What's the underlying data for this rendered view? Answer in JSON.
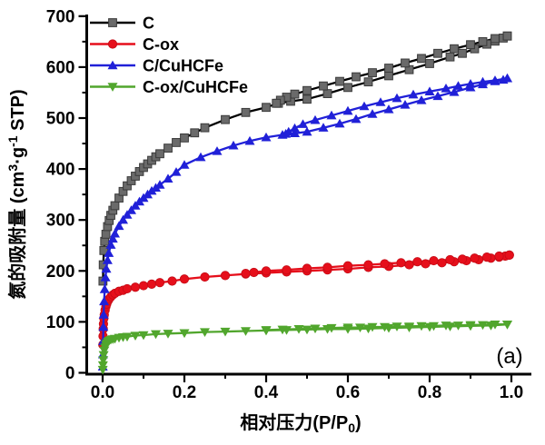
{
  "figure": {
    "panel_label": "(a)"
  },
  "axes": {
    "x_title_parts": [
      {
        "t": "相对压力(P/P",
        "shift": "none"
      },
      {
        "t": "0",
        "shift": "sub"
      },
      {
        "t": ")",
        "shift": "none"
      }
    ],
    "y_title_parts": [
      {
        "t": "氮的吸附量 (cm",
        "shift": "none"
      },
      {
        "t": "3",
        "shift": "sup"
      },
      {
        "t": "·g",
        "shift": "none"
      },
      {
        "t": "-1",
        "shift": "sup"
      },
      {
        "t": " STP)",
        "shift": "none"
      }
    ],
    "x_tick_labels": [
      "0.0",
      "0.2",
      "0.4",
      "0.6",
      "0.8",
      "1.0"
    ],
    "y_tick_labels": [
      "0",
      "100",
      "200",
      "300",
      "400",
      "500",
      "600",
      "700"
    ]
  },
  "chart_data": {
    "type": "line",
    "title": "",
    "xlabel": "相对压力(P/P0)",
    "ylabel": "氮的吸附量 (cm3·g-1 STP)",
    "xlim": [
      0,
      1.05
    ],
    "ylim": [
      0,
      700
    ],
    "x_major_ticks": [
      0,
      0.2,
      0.4,
      0.6,
      0.8,
      1.0
    ],
    "x_minor_ticks": [
      0.1,
      0.3,
      0.5,
      0.7,
      0.9
    ],
    "y_major_ticks": [
      0,
      100,
      200,
      300,
      400,
      500,
      600,
      700
    ],
    "y_minor_ticks": [
      50,
      150,
      250,
      350,
      450,
      550,
      650
    ],
    "grid": false,
    "legend_position": "top-left-inside",
    "series": [
      {
        "name": "C",
        "color": "#000000",
        "marker": "square",
        "marker_fill": "#6a6a6a",
        "marker_edge": "#3a3a3a",
        "adsorption": [
          [
            0.0008,
            180
          ],
          [
            0.0015,
            212
          ],
          [
            0.003,
            240
          ],
          [
            0.005,
            258
          ],
          [
            0.008,
            272
          ],
          [
            0.012,
            287
          ],
          [
            0.016,
            299
          ],
          [
            0.02,
            309
          ],
          [
            0.025,
            319
          ],
          [
            0.03,
            328
          ],
          [
            0.04,
            343
          ],
          [
            0.05,
            356
          ],
          [
            0.06,
            367
          ],
          [
            0.07,
            377
          ],
          [
            0.08,
            386
          ],
          [
            0.09,
            395
          ],
          [
            0.1,
            403
          ],
          [
            0.11,
            410
          ],
          [
            0.12,
            417
          ],
          [
            0.13,
            424
          ],
          [
            0.14,
            430
          ],
          [
            0.16,
            441
          ],
          [
            0.18,
            452
          ],
          [
            0.2,
            461
          ],
          [
            0.225,
            471
          ],
          [
            0.25,
            481
          ],
          [
            0.3,
            497
          ],
          [
            0.35,
            511
          ],
          [
            0.4,
            521
          ],
          [
            0.43,
            529
          ],
          [
            0.46,
            533
          ],
          [
            0.5,
            537
          ],
          [
            0.55,
            548
          ],
          [
            0.6,
            560
          ],
          [
            0.65,
            571
          ],
          [
            0.7,
            583
          ],
          [
            0.75,
            595
          ],
          [
            0.8,
            607
          ],
          [
            0.85,
            620
          ],
          [
            0.88,
            627
          ],
          [
            0.91,
            636
          ],
          [
            0.94,
            645
          ],
          [
            0.96,
            651
          ],
          [
            0.98,
            657
          ],
          [
            0.99,
            661
          ]
        ],
        "desorption": [
          [
            0.99,
            661
          ],
          [
            0.96,
            656
          ],
          [
            0.93,
            650
          ],
          [
            0.9,
            644
          ],
          [
            0.86,
            636
          ],
          [
            0.82,
            627
          ],
          [
            0.78,
            617
          ],
          [
            0.74,
            608
          ],
          [
            0.7,
            598
          ],
          [
            0.66,
            589
          ],
          [
            0.62,
            581
          ],
          [
            0.58,
            572
          ],
          [
            0.54,
            563
          ],
          [
            0.5,
            554
          ],
          [
            0.47,
            547
          ],
          [
            0.45,
            541
          ],
          [
            0.435,
            535
          ],
          [
            0.425,
            529
          ]
        ]
      },
      {
        "name": "C-ox",
        "color": "#e60f1b",
        "marker": "circle",
        "marker_fill": "#e60f1b",
        "marker_edge": "#c40b15",
        "adsorption": [
          [
            0.0006,
            55
          ],
          [
            0.001,
            72
          ],
          [
            0.0015,
            86
          ],
          [
            0.002,
            96
          ],
          [
            0.003,
            107
          ],
          [
            0.004,
            114
          ],
          [
            0.006,
            123
          ],
          [
            0.008,
            130
          ],
          [
            0.01,
            135
          ],
          [
            0.013,
            141
          ],
          [
            0.016,
            145
          ],
          [
            0.02,
            149
          ],
          [
            0.025,
            153
          ],
          [
            0.03,
            156
          ],
          [
            0.04,
            160
          ],
          [
            0.05,
            162
          ],
          [
            0.06,
            165
          ],
          [
            0.08,
            168
          ],
          [
            0.1,
            171
          ],
          [
            0.12,
            174
          ],
          [
            0.14,
            177
          ],
          [
            0.17,
            180
          ],
          [
            0.2,
            184
          ],
          [
            0.25,
            188
          ],
          [
            0.3,
            191
          ],
          [
            0.35,
            194
          ],
          [
            0.4,
            196
          ],
          [
            0.45,
            198
          ],
          [
            0.5,
            200
          ],
          [
            0.55,
            202
          ],
          [
            0.6,
            204
          ],
          [
            0.65,
            207
          ],
          [
            0.7,
            209
          ],
          [
            0.75,
            212
          ],
          [
            0.79,
            214
          ],
          [
            0.83,
            216
          ],
          [
            0.86,
            218
          ],
          [
            0.89,
            220
          ],
          [
            0.92,
            222
          ],
          [
            0.95,
            225
          ],
          [
            0.97,
            227
          ],
          [
            0.985,
            229
          ],
          [
            0.995,
            231
          ]
        ],
        "desorption": [
          [
            0.995,
            231
          ],
          [
            0.97,
            229
          ],
          [
            0.94,
            227
          ],
          [
            0.91,
            225
          ],
          [
            0.88,
            223
          ],
          [
            0.85,
            222
          ],
          [
            0.81,
            220
          ],
          [
            0.77,
            218
          ],
          [
            0.73,
            216
          ],
          [
            0.69,
            214
          ],
          [
            0.65,
            212
          ],
          [
            0.6,
            210
          ],
          [
            0.55,
            207
          ],
          [
            0.5,
            205
          ],
          [
            0.45,
            202
          ],
          [
            0.4,
            200
          ],
          [
            0.37,
            197
          ],
          [
            0.35,
            195
          ]
        ]
      },
      {
        "name": "C/CuHCFe",
        "color": "#2020d8",
        "marker": "triangle-up",
        "marker_fill": "#2020d8",
        "marker_edge": "#1414b4",
        "adsorption": [
          [
            0.0004,
            12
          ],
          [
            0.0008,
            36
          ],
          [
            0.0012,
            62
          ],
          [
            0.0018,
            90
          ],
          [
            0.0025,
            114
          ],
          [
            0.0035,
            140
          ],
          [
            0.005,
            164
          ],
          [
            0.007,
            187
          ],
          [
            0.009,
            204
          ],
          [
            0.012,
            221
          ],
          [
            0.015,
            235
          ],
          [
            0.02,
            251
          ],
          [
            0.025,
            263
          ],
          [
            0.03,
            273
          ],
          [
            0.04,
            288
          ],
          [
            0.05,
            300
          ],
          [
            0.06,
            310
          ],
          [
            0.07,
            319
          ],
          [
            0.08,
            328
          ],
          [
            0.09,
            336
          ],
          [
            0.1,
            343
          ],
          [
            0.11,
            350
          ],
          [
            0.12,
            357
          ],
          [
            0.13,
            363
          ],
          [
            0.14,
            369
          ],
          [
            0.16,
            381
          ],
          [
            0.18,
            394
          ],
          [
            0.2,
            408
          ],
          [
            0.24,
            423
          ],
          [
            0.28,
            435
          ],
          [
            0.32,
            446
          ],
          [
            0.36,
            455
          ],
          [
            0.4,
            462
          ],
          [
            0.44,
            467
          ],
          [
            0.47,
            470
          ],
          [
            0.5,
            473
          ],
          [
            0.54,
            481
          ],
          [
            0.58,
            489
          ],
          [
            0.62,
            498
          ],
          [
            0.66,
            508
          ],
          [
            0.7,
            517
          ],
          [
            0.74,
            526
          ],
          [
            0.78,
            535
          ],
          [
            0.82,
            543
          ],
          [
            0.86,
            551
          ],
          [
            0.9,
            560
          ],
          [
            0.93,
            566
          ],
          [
            0.96,
            572
          ],
          [
            0.98,
            575
          ],
          [
            0.99,
            578
          ]
        ],
        "desorption": [
          [
            0.99,
            578
          ],
          [
            0.96,
            574
          ],
          [
            0.93,
            571
          ],
          [
            0.9,
            567
          ],
          [
            0.87,
            563
          ],
          [
            0.84,
            558
          ],
          [
            0.8,
            552
          ],
          [
            0.76,
            546
          ],
          [
            0.72,
            539
          ],
          [
            0.68,
            531
          ],
          [
            0.64,
            523
          ],
          [
            0.6,
            514
          ],
          [
            0.56,
            505
          ],
          [
            0.52,
            496
          ],
          [
            0.49,
            488
          ],
          [
            0.47,
            480
          ],
          [
            0.455,
            473
          ],
          [
            0.448,
            469
          ]
        ]
      },
      {
        "name": "C-ox/CuHCFe",
        "color": "#51a62d",
        "marker": "triangle-down",
        "marker_fill": "#51a62d",
        "marker_edge": "#418823",
        "adsorption": [
          [
            0.0004,
            6
          ],
          [
            0.0008,
            15
          ],
          [
            0.0015,
            25
          ],
          [
            0.0025,
            35
          ],
          [
            0.004,
            44
          ],
          [
            0.006,
            50
          ],
          [
            0.008,
            55
          ],
          [
            0.01,
            58
          ],
          [
            0.013,
            61
          ],
          [
            0.016,
            63
          ],
          [
            0.02,
            65
          ],
          [
            0.025,
            66
          ],
          [
            0.03,
            67
          ],
          [
            0.04,
            69
          ],
          [
            0.05,
            70
          ],
          [
            0.06,
            71
          ],
          [
            0.08,
            73
          ],
          [
            0.1,
            74
          ],
          [
            0.13,
            76
          ],
          [
            0.16,
            77
          ],
          [
            0.2,
            78
          ],
          [
            0.25,
            80
          ],
          [
            0.3,
            81
          ],
          [
            0.35,
            82
          ],
          [
            0.4,
            83
          ],
          [
            0.45,
            84
          ],
          [
            0.5,
            85
          ],
          [
            0.55,
            86
          ],
          [
            0.6,
            86
          ],
          [
            0.65,
            87
          ],
          [
            0.7,
            88
          ],
          [
            0.75,
            89
          ],
          [
            0.8,
            90
          ],
          [
            0.85,
            91
          ],
          [
            0.9,
            92
          ],
          [
            0.95,
            93
          ],
          [
            0.99,
            95
          ]
        ],
        "desorption": [
          [
            0.99,
            95
          ],
          [
            0.96,
            95
          ],
          [
            0.93,
            94
          ],
          [
            0.9,
            94
          ],
          [
            0.87,
            93
          ],
          [
            0.84,
            93
          ],
          [
            0.81,
            92
          ],
          [
            0.78,
            92
          ],
          [
            0.75,
            91
          ],
          [
            0.72,
            91
          ],
          [
            0.69,
            90
          ],
          [
            0.66,
            90
          ],
          [
            0.63,
            89
          ],
          [
            0.6,
            89
          ],
          [
            0.56,
            88
          ],
          [
            0.52,
            87
          ],
          [
            0.48,
            86
          ],
          [
            0.44,
            85
          ],
          [
            0.4,
            84
          ]
        ]
      }
    ]
  }
}
